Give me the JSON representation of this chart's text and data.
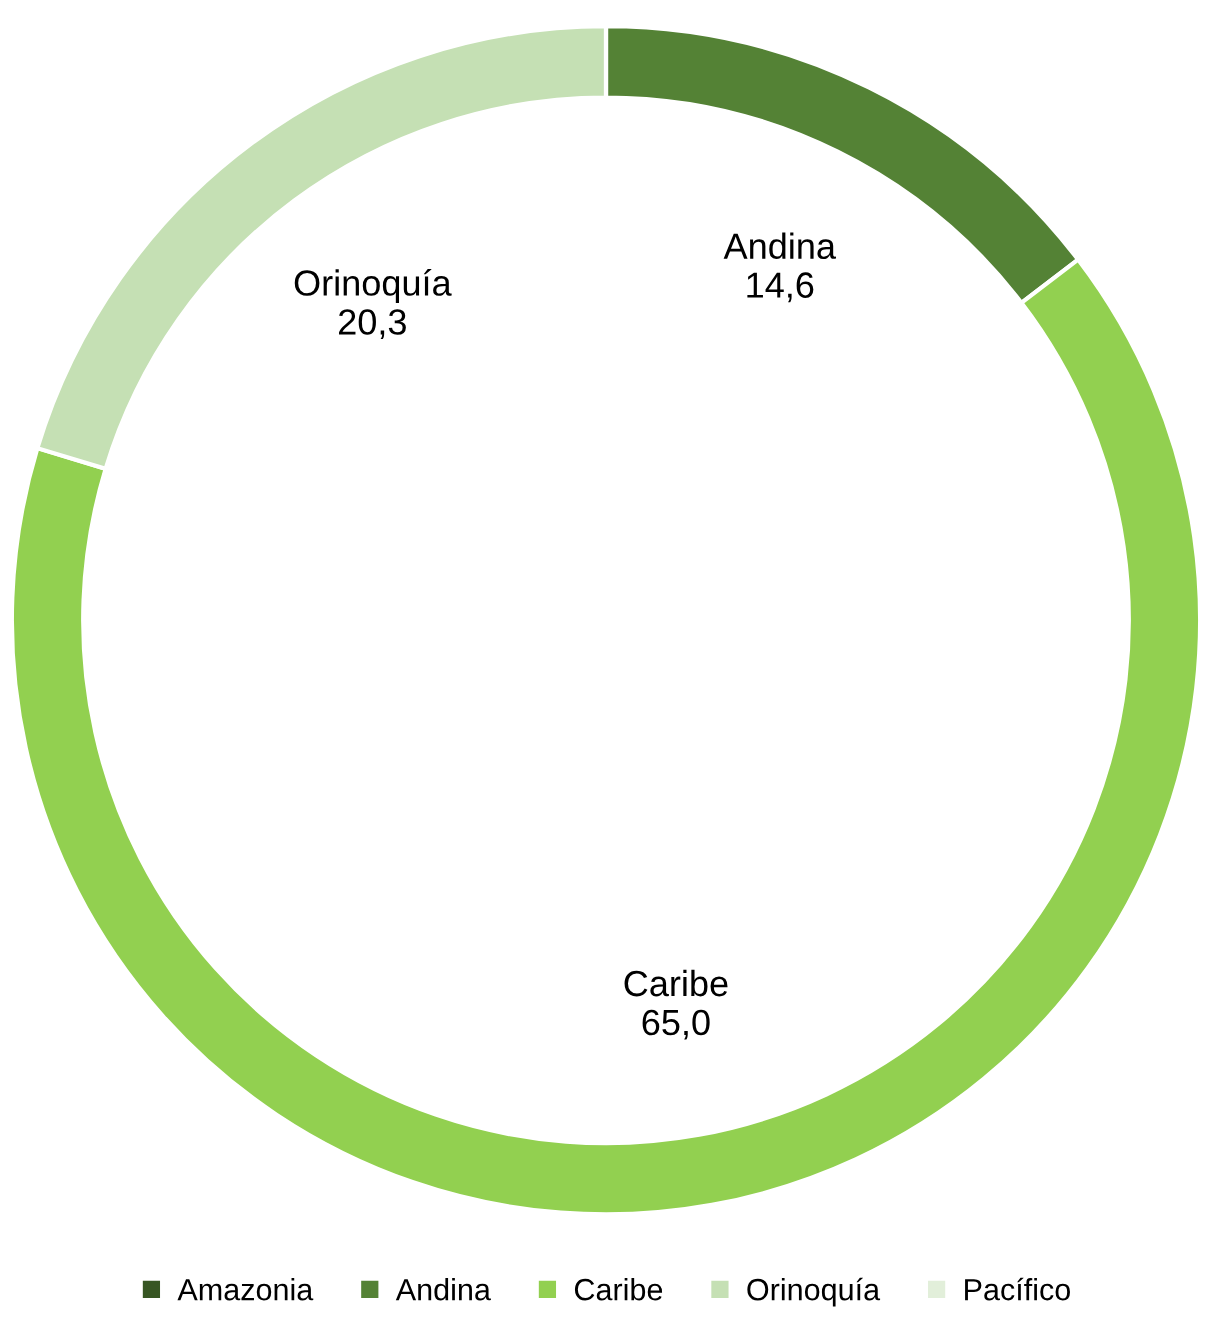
{
  "chart_data": {
    "type": "donut",
    "categories": [
      "Amazonia",
      "Andina",
      "Caribe",
      "Orinoquía",
      "Pacífico"
    ],
    "values": [
      0,
      14.6,
      65.0,
      20.3,
      0
    ],
    "colors": [
      "#375623",
      "#548235",
      "#92d050",
      "#c5e0b4",
      "#e2efda"
    ],
    "value_labels": [
      null,
      "14,6",
      "65,0",
      "20,3",
      null
    ],
    "legend": "bottom"
  }
}
